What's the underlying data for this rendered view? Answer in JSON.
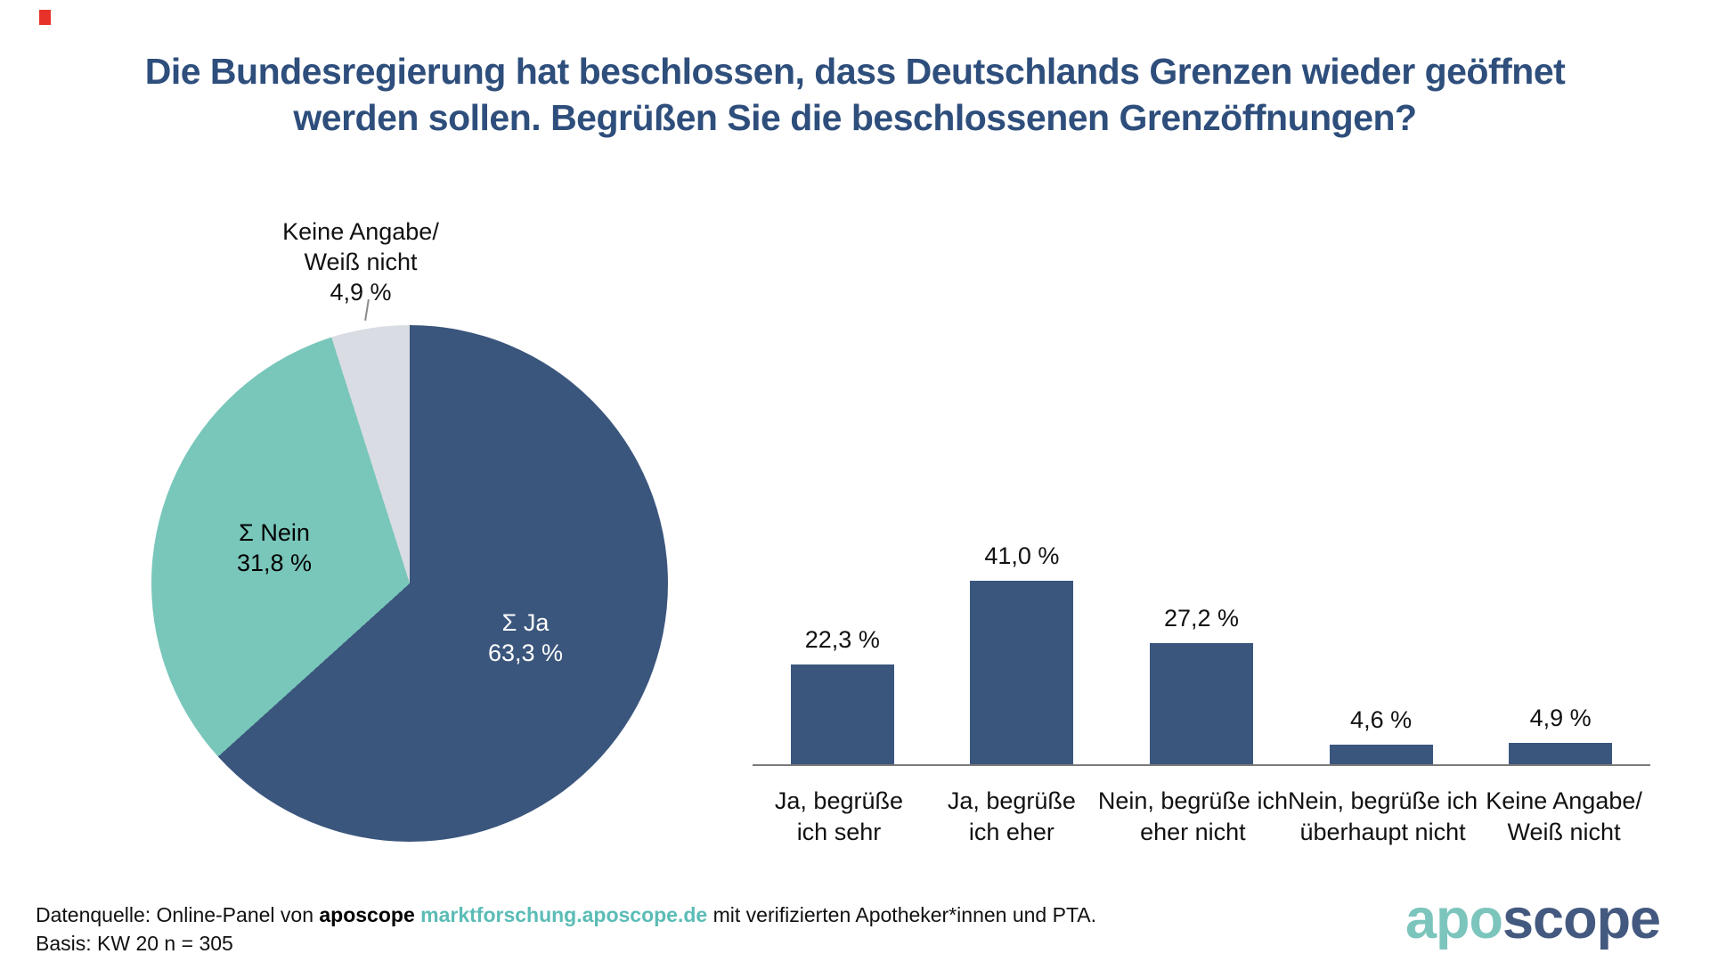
{
  "colors": {
    "navy": "#3b567d",
    "teal": "#79c6ba",
    "light_gray": "#d9dce3",
    "title_navy": "#2e4e7c",
    "link_teal": "#5bbcb6",
    "logo_teal": "#7cc5bd",
    "logo_navy": "#43597f",
    "red_marker": "#e63229",
    "axis_gray": "#7a7a7a"
  },
  "title": {
    "line1": "Die Bundesregierung hat beschlossen, dass Deutschlands Grenzen wieder geöffnet",
    "line2": "werden sollen. Begrüßen Sie die beschlossenen Grenzöffnungen?"
  },
  "chart_data": [
    {
      "type": "pie",
      "title": "Summenanteile Ja / Nein / Keine Angabe",
      "direction": "clockwise",
      "start": "12-oclock",
      "slices": [
        {
          "label": "Σ Ja",
          "value": 63.3,
          "display": "63,3 %",
          "color_key": "navy"
        },
        {
          "label": "Σ Nein",
          "value": 31.8,
          "display": "31,8 %",
          "color_key": "teal"
        },
        {
          "label": "Keine Angabe/Weiß nicht",
          "value": 4.9,
          "display": "4,9 %",
          "color_key": "light_gray"
        }
      ]
    },
    {
      "type": "bar",
      "title": "Einzelantworten",
      "categories": [
        "Ja, begrüße ich sehr",
        "Ja, begrüße ich eher",
        "Nein, begrüße ich eher nicht",
        "Nein, begrüße ich überhaupt nicht",
        "Keine Angabe/Weiß nicht"
      ],
      "categories_lines": [
        [
          "Ja, begrüße",
          "ich sehr"
        ],
        [
          "Ja, begrüße",
          "ich eher"
        ],
        [
          "Nein, begrüße ich",
          "eher nicht"
        ],
        [
          "Nein, begrüße ich",
          "überhaupt nicht"
        ],
        [
          "Keine Angabe/",
          "Weiß nicht"
        ]
      ],
      "values": [
        22.3,
        41.0,
        27.2,
        4.6,
        4.9
      ],
      "value_labels": [
        "22,3 %",
        "41,0 %",
        "27,2 %",
        "4,6 %",
        "4,9 %"
      ],
      "ylim": [
        0,
        45
      ],
      "grid": false,
      "legend": "none",
      "bar_color_key": "navy"
    }
  ],
  "pie_labels": {
    "keine": {
      "l1": "Keine Angabe/",
      "l2": "Weiß nicht",
      "l3": "4,9 %"
    },
    "nein": {
      "l1": "Σ Nein",
      "l2": "31,8 %"
    },
    "ja": {
      "l1": "Σ Ja",
      "l2": "63,3 %"
    }
  },
  "footer": {
    "prefix": "Datenquelle: Online-Panel von ",
    "brand": "aposcope",
    "gap": " ",
    "link": "marktforschung.aposcope.de",
    "suffix": " mit verifizierten Apotheker*innen und PTA.",
    "basis": "Basis: KW 20 n = 305"
  },
  "logo": {
    "apo": "apo",
    "scope": "scope"
  }
}
